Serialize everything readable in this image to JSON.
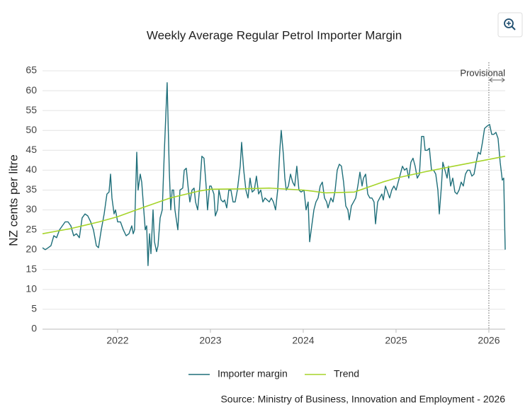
{
  "chart_data": {
    "type": "line",
    "title": "Weekly Average Regular Petrol Importer Margin",
    "y_label": "NZ cents per litre",
    "source": "Source: Ministry of Business, Innovation and Employment - 2026",
    "annotation": {
      "text": "Provisional",
      "x": 2026
    },
    "xlim": [
      2021.191,
      2026.176
    ],
    "xticks": [
      2022,
      2023,
      2024,
      2025,
      2026
    ],
    "ylim": [
      0,
      65
    ],
    "yticks": [
      0,
      5,
      10,
      15,
      20,
      25,
      30,
      35,
      40,
      45,
      50,
      55,
      60,
      65
    ],
    "grid": true,
    "series": [
      {
        "name": "Importer margin",
        "color": "#1f6f7a",
        "x": [
          2021.191,
          2021.221,
          2021.252,
          2021.282,
          2021.313,
          2021.343,
          2021.374,
          2021.405,
          2021.435,
          2021.466,
          2021.496,
          2021.527,
          2021.557,
          2021.588,
          2021.618,
          2021.649,
          2021.679,
          2021.71,
          2021.74,
          2021.771,
          2021.794,
          2021.824,
          2021.855,
          2021.885,
          2021.908,
          2021.924,
          2021.939,
          2021.962,
          2021.977,
          2022.0,
          2022.031,
          2022.061,
          2022.092,
          2022.122,
          2022.153,
          2022.168,
          2022.183,
          2022.206,
          2022.221,
          2022.244,
          2022.26,
          2022.282,
          2022.298,
          2022.313,
          2022.328,
          2022.344,
          2022.359,
          2022.382,
          2022.397,
          2022.42,
          2022.435,
          2022.458,
          2022.481,
          2022.504,
          2022.534,
          2022.557,
          2022.573,
          2022.588,
          2022.603,
          2022.618,
          2022.649,
          2022.672,
          2022.702,
          2022.718,
          2022.74,
          2022.763,
          2022.779,
          2022.802,
          2022.824,
          2022.84,
          2022.863,
          2022.886,
          2022.908,
          2022.931,
          2022.954,
          2022.969,
          2022.992,
          2023.008,
          2023.038,
          2023.053,
          2023.076,
          2023.092,
          2023.115,
          2023.137,
          2023.153,
          2023.176,
          2023.198,
          2023.221,
          2023.244,
          2023.267,
          2023.29,
          2023.321,
          2023.336,
          2023.359,
          2023.382,
          2023.405,
          2023.427,
          2023.45,
          2023.473,
          2023.496,
          2023.519,
          2023.542,
          2023.565,
          2023.588,
          2023.611,
          2023.634,
          2023.656,
          2023.679,
          2023.702,
          2023.725,
          2023.748,
          2023.763,
          2023.786,
          2023.802,
          2023.817,
          2023.84,
          2023.863,
          2023.886,
          2023.908,
          2023.931,
          2023.954,
          2023.977,
          2024.008,
          2024.031,
          2024.053,
          2024.069,
          2024.092,
          2024.115,
          2024.137,
          2024.16,
          2024.183,
          2024.206,
          2024.229,
          2024.252,
          2024.267,
          2024.298,
          2024.321,
          2024.344,
          2024.366,
          2024.389,
          2024.412,
          2024.435,
          2024.458,
          2024.481,
          2024.496,
          2024.519,
          2024.542,
          2024.565,
          2024.588,
          2024.611,
          2024.634,
          2024.649,
          2024.672,
          2024.695,
          2024.718,
          2024.74,
          2024.763,
          2024.779,
          2024.802,
          2024.824,
          2024.847,
          2024.863,
          2024.886,
          2024.909,
          2024.931,
          2024.954,
          2024.977,
          2025.0,
          2025.023,
          2025.046,
          2025.069,
          2025.092,
          2025.115,
          2025.137,
          2025.16,
          2025.183,
          2025.206,
          2025.229,
          2025.252,
          2025.275,
          2025.298,
          2025.313,
          2025.336,
          2025.359,
          2025.382,
          2025.405,
          2025.428,
          2025.451,
          2025.466,
          2025.489,
          2025.504,
          2025.527,
          2025.55,
          2025.565,
          2025.588,
          2025.611,
          2025.634,
          2025.657,
          2025.679,
          2025.702,
          2025.725,
          2025.748,
          2025.771,
          2025.794,
          2025.817,
          2025.84,
          2025.863,
          2025.886,
          2025.909,
          2025.931,
          2025.954,
          2025.977,
          2026.008,
          2026.031,
          2026.053,
          2026.076,
          2026.099,
          2026.122,
          2026.145,
          2026.16,
          2026.176
        ],
        "values": [
          20.5,
          20,
          20.5,
          21,
          23.5,
          23,
          25,
          26,
          27,
          27,
          26,
          23.5,
          24,
          23,
          28,
          29,
          28.5,
          27,
          25,
          21,
          20.5,
          25,
          29,
          34,
          34.5,
          39,
          33,
          29,
          30,
          27,
          27,
          25,
          23.5,
          24,
          26,
          24,
          25,
          44.5,
          35,
          39,
          37,
          30,
          25,
          26,
          16,
          24,
          19,
          30,
          22,
          19.5,
          21,
          28,
          30,
          45,
          62,
          40,
          30,
          35,
          35,
          30,
          25,
          35,
          35.5,
          40,
          40.5,
          35,
          32,
          35,
          35.5,
          32,
          30,
          36,
          43.5,
          43,
          36,
          30,
          36,
          36,
          34,
          28.5,
          30,
          35,
          32.5,
          32,
          32.5,
          30.5,
          35,
          35,
          32,
          32,
          35,
          41,
          47,
          40,
          35,
          33,
          38,
          34.5,
          35,
          38.5,
          34,
          35,
          32,
          33,
          32.5,
          32,
          33,
          32,
          30,
          35,
          45,
          50,
          44,
          38,
          35,
          36,
          39,
          37,
          36,
          41,
          35,
          34.5,
          35,
          30,
          32,
          22,
          26,
          30,
          32,
          33,
          36,
          37,
          33,
          32,
          30.5,
          33,
          32,
          35,
          40,
          41.5,
          41,
          37,
          31,
          30,
          27.5,
          31,
          32,
          33,
          36,
          39.5,
          36,
          38,
          39,
          34,
          33,
          33,
          32,
          26.5,
          32,
          33,
          34,
          32.5,
          36,
          34.5,
          33,
          35,
          36,
          35,
          37,
          39,
          41,
          40,
          40.5,
          38,
          42,
          43,
          41,
          38,
          39,
          48.5,
          48.5,
          45,
          45,
          45.5,
          40,
          40,
          39,
          35,
          29,
          36,
          42,
          40,
          38,
          41,
          36,
          38,
          34.5,
          34,
          35,
          37,
          36,
          39,
          40,
          40,
          38.5,
          39,
          42,
          44.5,
          44,
          47,
          50.5,
          51,
          51.5,
          49,
          49,
          49.5,
          48,
          42,
          37.5,
          38,
          20
        ]
      },
      {
        "name": "Trend",
        "color": "#a6d42a",
        "x": [
          2021.191,
          2021.496,
          2021.802,
          2022.0,
          2022.26,
          2022.565,
          2022.87,
          2023.0,
          2023.328,
          2023.634,
          2024.0,
          2024.244,
          2024.55,
          2024.855,
          2025.0,
          2025.313,
          2025.618,
          2026.0,
          2026.176
        ],
        "values": [
          24,
          25.3,
          27,
          28.3,
          30.5,
          33,
          34.7,
          35.2,
          35.3,
          35.5,
          35,
          34.3,
          34.5,
          37,
          38,
          39.6,
          41,
          42.7,
          43.5
        ]
      }
    ]
  }
}
